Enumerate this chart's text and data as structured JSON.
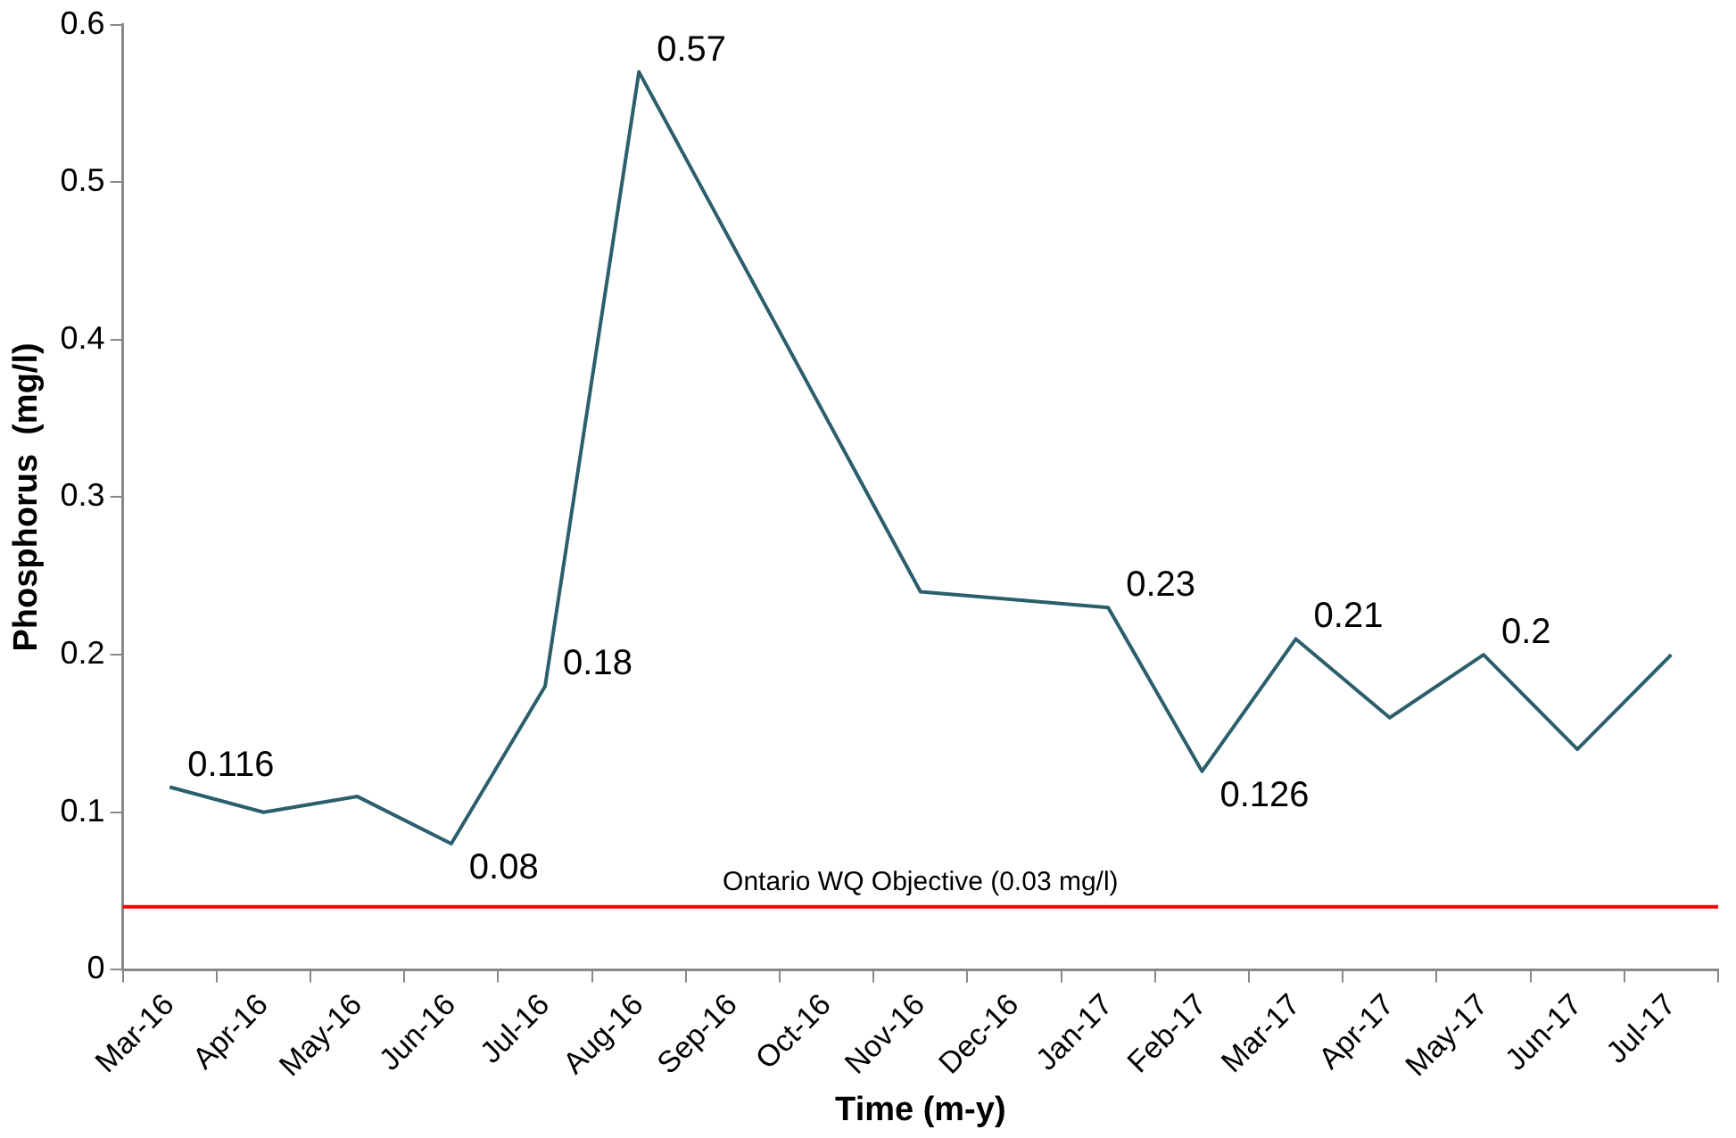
{
  "chart_data": {
    "type": "line",
    "xlabel": "Time (m-y)",
    "ylabel": "Phosphorus  (mg/l)",
    "categories": [
      "Mar-16",
      "Apr-16",
      "May-16",
      "Jun-16",
      "Jul-16",
      "Aug-16",
      "Sep-16",
      "Oct-16",
      "Nov-16",
      "Dec-16",
      "Jan-17",
      "Feb-17",
      "Mar-17",
      "Apr-17",
      "May-17",
      "Jun-17",
      "Jul-17"
    ],
    "series": [
      {
        "color": "#2b5f6b",
        "values": [
          0.116,
          0.1,
          0.11,
          0.08,
          0.18,
          0.57,
          null,
          null,
          0.24,
          null,
          0.23,
          0.126,
          0.21,
          0.16,
          0.2,
          0.14,
          0.2
        ],
        "value_labels": [
          "0.116",
          null,
          null,
          "0.08",
          "0.18",
          "0.57",
          null,
          null,
          null,
          null,
          "0.23",
          "0.126",
          "0.21",
          null,
          "0.2",
          null,
          null
        ]
      }
    ],
    "ylim": [
      0,
      0.6
    ],
    "yticks": [
      0,
      0.1,
      0.2,
      0.3,
      0.4,
      0.5,
      0.6
    ],
    "grid": false,
    "legend": false,
    "marker": "none",
    "line_style": "solid",
    "ref_lines": [
      {
        "axis": "y",
        "value": 0.04,
        "label": "Ontario WQ Objective (0.03 mg/l)",
        "color": "#ff0000"
      }
    ]
  }
}
